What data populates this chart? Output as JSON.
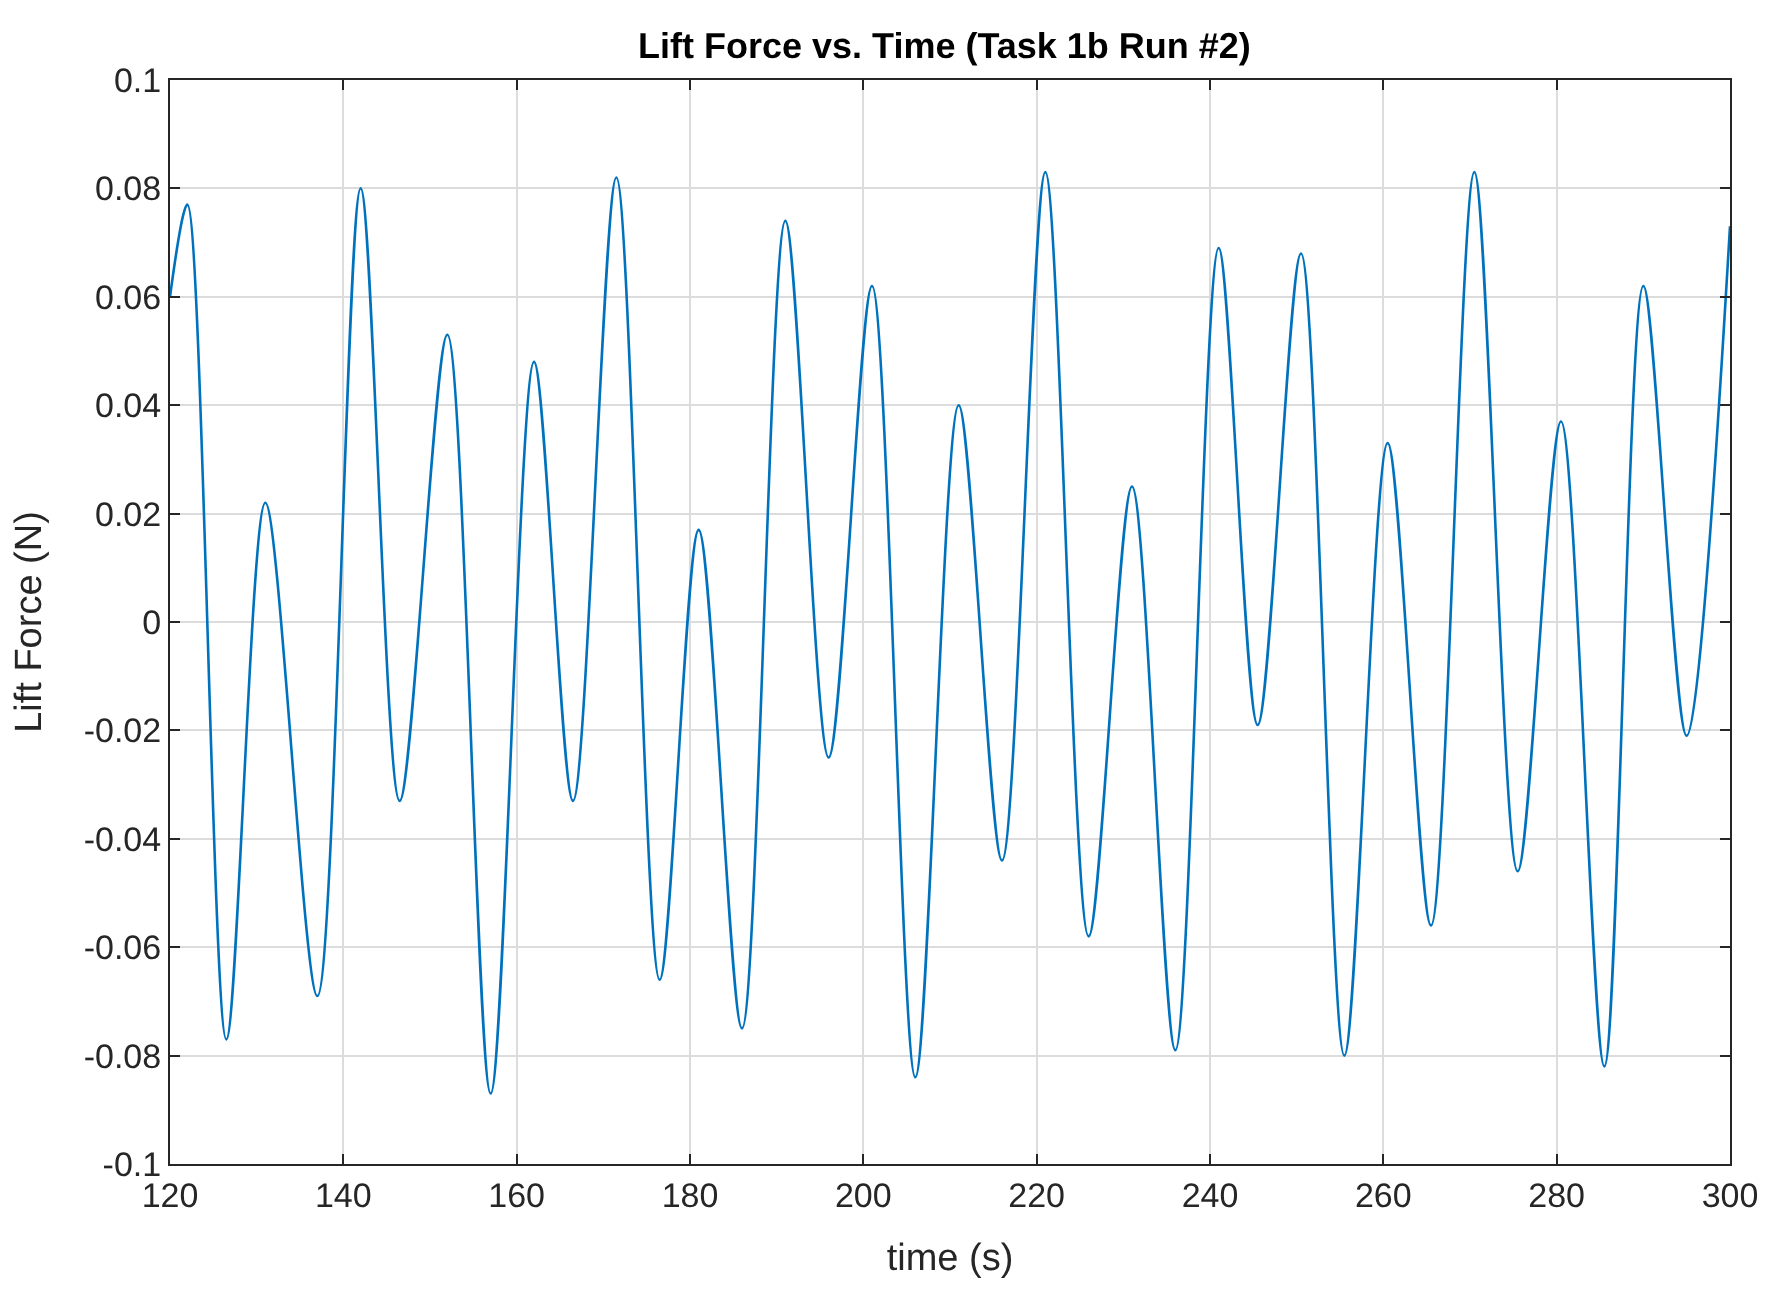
{
  "chart_data": {
    "type": "line",
    "title": "Lift Force vs. Time (Task 1b Run #2)",
    "xlabel": "time (s)",
    "ylabel": "Lift Force (N)",
    "xlim": [
      120,
      300
    ],
    "xticks": [
      120,
      140,
      160,
      180,
      200,
      220,
      240,
      260,
      280,
      300
    ],
    "ylim": [
      -0.1,
      0.1
    ],
    "yticks": [
      {
        "value": -0.1,
        "label": "-0.1"
      },
      {
        "value": -0.08,
        "label": "-0.08"
      },
      {
        "value": -0.06,
        "label": "-0.06"
      },
      {
        "value": -0.04,
        "label": "-0.04"
      },
      {
        "value": -0.02,
        "label": "-0.02"
      },
      0,
      0.02,
      0.04,
      0.06,
      0.08,
      0.1
    ],
    "grid": true,
    "marker": "none",
    "line_style": "solid",
    "series": [
      {
        "color": "#0072bd",
        "x": [
          120,
          122,
          126.5,
          131,
          137,
          142,
          146.5,
          152,
          157,
          162,
          166.5,
          171.5,
          176.5,
          181,
          186,
          191,
          196,
          201,
          206,
          211,
          216,
          221,
          226,
          231,
          236,
          241,
          245.5,
          250.5,
          255.5,
          260.5,
          265.5,
          270.5,
          275.5,
          280.5,
          285.5,
          290,
          295,
          300
        ],
        "values": [
          0.06,
          0.077,
          -0.077,
          0.022,
          -0.069,
          0.08,
          -0.033,
          0.053,
          -0.087,
          0.048,
          -0.033,
          0.082,
          -0.066,
          0.017,
          -0.075,
          0.074,
          -0.025,
          0.062,
          -0.084,
          0.04,
          -0.044,
          0.083,
          -0.058,
          0.025,
          -0.079,
          0.069,
          -0.019,
          0.068,
          -0.08,
          0.033,
          -0.056,
          0.083,
          -0.046,
          0.037,
          -0.082,
          0.062,
          -0.021,
          0.073
        ]
      }
    ]
  }
}
